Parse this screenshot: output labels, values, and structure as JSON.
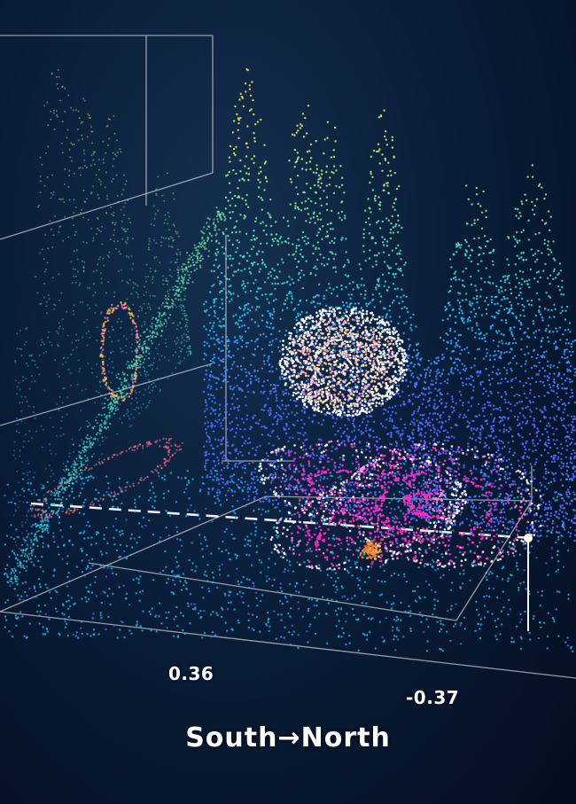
{
  "chart_data": {
    "type": "scatter",
    "projection": "3d",
    "title": "",
    "xlabel": "South→North",
    "x_tick_labels": [
      "0.36",
      "-0.37"
    ],
    "grid": true,
    "legend": "none",
    "colormap": [
      "#4f6bff",
      "#19c3ff",
      "#5ee6a8",
      "#d8f05a",
      "#ffd22e"
    ],
    "series": [
      {
        "shape": "mountain surface",
        "color_by": "height",
        "peaks": 6
      },
      {
        "shape": "sphere",
        "color": "#ffffff"
      },
      {
        "shape": "torus knot",
        "color": "#ff2fc8"
      },
      {
        "shape": "projected ellipse on back wall",
        "color": "#ff8c5a"
      }
    ]
  },
  "colors": {
    "background": "#0b203c",
    "grid": "#c9c9c9",
    "sphere": "#ffffff",
    "knot": "#ff2fc8"
  }
}
